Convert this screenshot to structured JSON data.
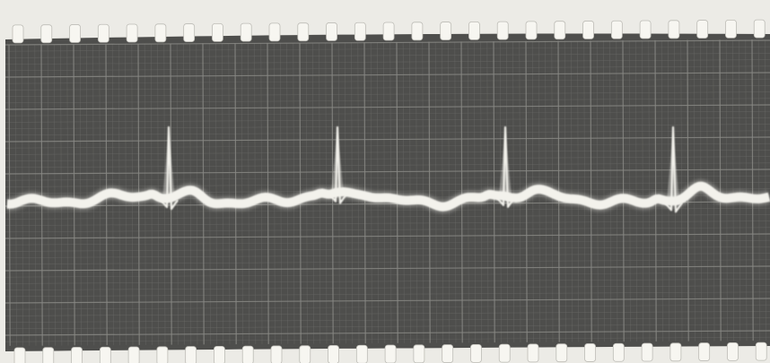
{
  "photo": {
    "subject": "ecg-film-strip",
    "colors": {
      "paper": "#ecebe6",
      "film": "#4e4e4c",
      "grid_minor": "#6e6e6b",
      "grid_major": "#8a8a86",
      "trace": "#f3f2ec",
      "hole": "#f7f6f1"
    },
    "sprocket_holes_per_row": 27,
    "peaks_visible": 4
  }
}
